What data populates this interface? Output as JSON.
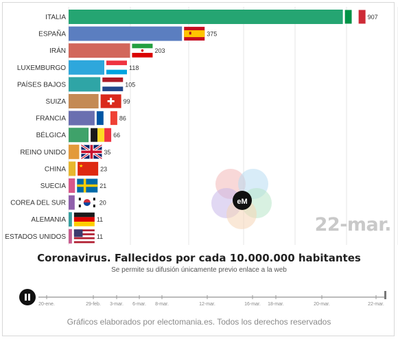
{
  "chart_data": {
    "type": "bar",
    "orientation": "horizontal",
    "title": "Coronavirus. Fallecidos por cada 10.000.000 habitantes",
    "subtitle": "Se permite su difusión únicamente previo enlace a la web",
    "date": "22-mar.",
    "categories": [
      "ITALIA",
      "ESPAÑA",
      "IRÁN",
      "LUXEMBURGO",
      "PAÍSES BAJOS",
      "SUIZA",
      "FRANCIA",
      "BÉLGICA",
      "REINO UNIDO",
      "CHINA",
      "SUECIA",
      "COREA DEL SUR",
      "ALEMANIA",
      "ESTADOS UNIDOS"
    ],
    "values": [
      907,
      375,
      203,
      118,
      105,
      99,
      86,
      66,
      35,
      23,
      21,
      20,
      11,
      11
    ],
    "value_labels": [
      "907",
      "375",
      "203",
      "118",
      "105",
      "99",
      "86",
      "66",
      "35",
      "23",
      "21",
      "20",
      "11",
      "11"
    ],
    "colors": [
      "#25a572",
      "#5b7ec0",
      "#d2675b",
      "#2ea7dc",
      "#2fa5a6",
      "#c48a54",
      "#6a6fb0",
      "#3fa26a",
      "#e39a3a",
      "#e8b82f",
      "#d9588a",
      "#8f5fab",
      "#37a0a0",
      "#c85d8f"
    ],
    "flags": [
      "italy-flag",
      "spain-flag",
      "iran-flag",
      "luxembourg-flag",
      "netherlands-flag",
      "switzerland-flag",
      "france-flag",
      "belgium-flag",
      "uk-flag",
      "china-flag",
      "sweden-flag",
      "south-korea-flag",
      "germany-flag",
      "usa-flag"
    ],
    "xlim": [
      0,
      1010
    ],
    "grid": true,
    "legend": "none"
  },
  "timeline": {
    "labels": [
      "20-ene.",
      "29-feb.",
      "3-mar.",
      "6-mar.",
      "8-mar.",
      "12-mar.",
      "16-mar.",
      "18-mar.",
      "20-mar.",
      "22-mar."
    ]
  },
  "footer": "Gráficos elaborados por electomania.es. Todos los derechos reservados",
  "logo_text": "eM"
}
